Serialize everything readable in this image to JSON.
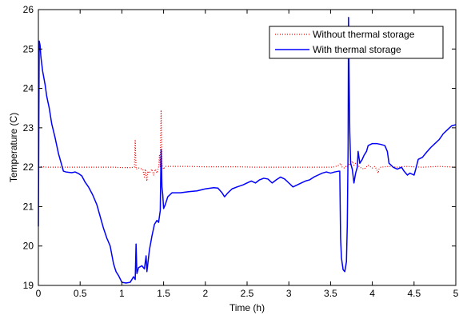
{
  "chart_data": {
    "type": "line",
    "xlabel": "Time (h)",
    "ylabel": "Temperature (C)",
    "xlim": [
      0,
      5
    ],
    "ylim": [
      19,
      26
    ],
    "xticks": [
      "0",
      "0.5",
      "1",
      "1.5",
      "2",
      "2.5",
      "3",
      "3.5",
      "4",
      "4.5",
      "5"
    ],
    "yticks": [
      "19",
      "20",
      "21",
      "22",
      "23",
      "24",
      "25",
      "26"
    ],
    "grid": false,
    "legend_position": "top-right",
    "series": [
      {
        "name": "Without thermal storage",
        "color": "#ff0000",
        "style": "dotted",
        "points": [
          [
            0.0,
            22.02
          ],
          [
            0.05,
            22.01
          ],
          [
            0.1,
            22.0
          ],
          [
            0.2,
            22.0
          ],
          [
            0.3,
            22.0
          ],
          [
            0.4,
            22.0
          ],
          [
            0.5,
            22.0
          ],
          [
            0.6,
            22.0
          ],
          [
            0.7,
            22.0
          ],
          [
            0.8,
            22.0
          ],
          [
            0.9,
            22.0
          ],
          [
            1.0,
            21.99
          ],
          [
            1.1,
            21.99
          ],
          [
            1.15,
            22.0
          ],
          [
            1.16,
            22.7
          ],
          [
            1.17,
            21.95
          ],
          [
            1.2,
            21.98
          ],
          [
            1.25,
            21.95
          ],
          [
            1.27,
            21.75
          ],
          [
            1.28,
            21.95
          ],
          [
            1.3,
            21.65
          ],
          [
            1.31,
            21.9
          ],
          [
            1.33,
            21.85
          ],
          [
            1.36,
            21.95
          ],
          [
            1.38,
            21.8
          ],
          [
            1.4,
            21.95
          ],
          [
            1.42,
            21.85
          ],
          [
            1.44,
            22.0
          ],
          [
            1.45,
            22.3
          ],
          [
            1.46,
            22.0
          ],
          [
            1.47,
            23.45
          ],
          [
            1.48,
            22.05
          ],
          [
            1.5,
            21.95
          ],
          [
            1.52,
            22.02
          ],
          [
            1.6,
            22.02
          ],
          [
            1.8,
            22.02
          ],
          [
            2.0,
            22.01
          ],
          [
            2.2,
            22.01
          ],
          [
            2.4,
            22.01
          ],
          [
            2.6,
            22.0
          ],
          [
            2.8,
            22.0
          ],
          [
            3.0,
            22.0
          ],
          [
            3.2,
            22.0
          ],
          [
            3.4,
            22.0
          ],
          [
            3.5,
            22.0
          ],
          [
            3.55,
            22.01
          ],
          [
            3.6,
            22.05
          ],
          [
            3.62,
            22.1
          ],
          [
            3.64,
            22.0
          ],
          [
            3.66,
            21.98
          ],
          [
            3.68,
            22.02
          ],
          [
            3.7,
            22.0
          ],
          [
            3.72,
            22.1
          ],
          [
            3.74,
            22.05
          ],
          [
            3.76,
            22.15
          ],
          [
            3.78,
            22.05
          ],
          [
            3.8,
            22.1
          ],
          [
            3.85,
            22.0
          ],
          [
            3.9,
            21.95
          ],
          [
            3.95,
            22.05
          ],
          [
            4.0,
            21.98
          ],
          [
            4.03,
            22.02
          ],
          [
            4.05,
            21.95
          ],
          [
            4.07,
            21.85
          ],
          [
            4.08,
            21.95
          ],
          [
            4.1,
            22.0
          ],
          [
            4.2,
            22.02
          ],
          [
            4.3,
            22.0
          ],
          [
            4.4,
            22.02
          ],
          [
            4.5,
            22.01
          ],
          [
            4.6,
            22.0
          ],
          [
            4.7,
            22.01
          ],
          [
            4.8,
            22.02
          ],
          [
            4.9,
            22.01
          ],
          [
            5.0,
            22.0
          ]
        ]
      },
      {
        "name": "With thermal storage",
        "color": "#0000ff",
        "style": "solid",
        "points": [
          [
            0.0,
            20.5
          ],
          [
            0.01,
            25.2
          ],
          [
            0.02,
            25.1
          ],
          [
            0.03,
            24.8
          ],
          [
            0.05,
            24.45
          ],
          [
            0.08,
            24.1
          ],
          [
            0.1,
            23.8
          ],
          [
            0.13,
            23.5
          ],
          [
            0.16,
            23.1
          ],
          [
            0.2,
            22.75
          ],
          [
            0.24,
            22.35
          ],
          [
            0.28,
            22.05
          ],
          [
            0.3,
            21.9
          ],
          [
            0.33,
            21.88
          ],
          [
            0.36,
            21.87
          ],
          [
            0.4,
            21.86
          ],
          [
            0.44,
            21.88
          ],
          [
            0.48,
            21.84
          ],
          [
            0.52,
            21.78
          ],
          [
            0.56,
            21.62
          ],
          [
            0.6,
            21.5
          ],
          [
            0.65,
            21.3
          ],
          [
            0.7,
            21.05
          ],
          [
            0.74,
            20.75
          ],
          [
            0.78,
            20.45
          ],
          [
            0.82,
            20.2
          ],
          [
            0.86,
            20.0
          ],
          [
            0.9,
            19.55
          ],
          [
            0.93,
            19.35
          ],
          [
            0.96,
            19.25
          ],
          [
            1.0,
            19.08
          ],
          [
            1.05,
            19.06
          ],
          [
            1.1,
            19.08
          ],
          [
            1.14,
            19.22
          ],
          [
            1.16,
            19.15
          ],
          [
            1.17,
            20.05
          ],
          [
            1.18,
            19.3
          ],
          [
            1.2,
            19.45
          ],
          [
            1.24,
            19.5
          ],
          [
            1.27,
            19.42
          ],
          [
            1.29,
            19.75
          ],
          [
            1.3,
            19.35
          ],
          [
            1.33,
            19.9
          ],
          [
            1.36,
            20.25
          ],
          [
            1.39,
            20.55
          ],
          [
            1.42,
            20.65
          ],
          [
            1.44,
            20.6
          ],
          [
            1.46,
            20.9
          ],
          [
            1.47,
            22.45
          ],
          [
            1.48,
            21.5
          ],
          [
            1.49,
            21.3
          ],
          [
            1.5,
            20.95
          ],
          [
            1.52,
            21.05
          ],
          [
            1.55,
            21.25
          ],
          [
            1.6,
            21.35
          ],
          [
            1.7,
            21.35
          ],
          [
            1.8,
            21.38
          ],
          [
            1.9,
            21.4
          ],
          [
            2.0,
            21.45
          ],
          [
            2.1,
            21.48
          ],
          [
            2.15,
            21.47
          ],
          [
            2.2,
            21.35
          ],
          [
            2.23,
            21.25
          ],
          [
            2.27,
            21.35
          ],
          [
            2.32,
            21.45
          ],
          [
            2.38,
            21.5
          ],
          [
            2.45,
            21.55
          ],
          [
            2.5,
            21.6
          ],
          [
            2.55,
            21.65
          ],
          [
            2.6,
            21.6
          ],
          [
            2.65,
            21.68
          ],
          [
            2.7,
            21.72
          ],
          [
            2.75,
            21.7
          ],
          [
            2.8,
            21.6
          ],
          [
            2.85,
            21.68
          ],
          [
            2.9,
            21.75
          ],
          [
            2.95,
            21.7
          ],
          [
            3.0,
            21.6
          ],
          [
            3.05,
            21.5
          ],
          [
            3.1,
            21.55
          ],
          [
            3.15,
            21.6
          ],
          [
            3.2,
            21.65
          ],
          [
            3.25,
            21.68
          ],
          [
            3.3,
            21.75
          ],
          [
            3.35,
            21.8
          ],
          [
            3.4,
            21.85
          ],
          [
            3.45,
            21.88
          ],
          [
            3.5,
            21.85
          ],
          [
            3.55,
            21.88
          ],
          [
            3.6,
            21.9
          ],
          [
            3.61,
            21.9
          ],
          [
            3.62,
            20.2
          ],
          [
            3.63,
            19.7
          ],
          [
            3.65,
            19.4
          ],
          [
            3.67,
            19.35
          ],
          [
            3.69,
            19.6
          ],
          [
            3.7,
            20.5
          ],
          [
            3.71,
            22.5
          ],
          [
            3.715,
            25.8
          ],
          [
            3.72,
            24.6
          ],
          [
            3.73,
            22.9
          ],
          [
            3.74,
            22.1
          ],
          [
            3.76,
            21.95
          ],
          [
            3.78,
            21.6
          ],
          [
            3.8,
            21.85
          ],
          [
            3.82,
            22.0
          ],
          [
            3.83,
            22.4
          ],
          [
            3.85,
            22.1
          ],
          [
            3.88,
            22.2
          ],
          [
            3.9,
            22.3
          ],
          [
            3.93,
            22.4
          ],
          [
            3.95,
            22.55
          ],
          [
            4.0,
            22.6
          ],
          [
            4.05,
            22.6
          ],
          [
            4.1,
            22.58
          ],
          [
            4.15,
            22.55
          ],
          [
            4.18,
            22.4
          ],
          [
            4.2,
            22.1
          ],
          [
            4.25,
            22.0
          ],
          [
            4.3,
            21.95
          ],
          [
            4.35,
            22.0
          ],
          [
            4.38,
            21.9
          ],
          [
            4.4,
            21.85
          ],
          [
            4.42,
            21.8
          ],
          [
            4.45,
            21.85
          ],
          [
            4.5,
            21.8
          ],
          [
            4.52,
            21.95
          ],
          [
            4.55,
            22.2
          ],
          [
            4.6,
            22.25
          ],
          [
            4.65,
            22.38
          ],
          [
            4.7,
            22.5
          ],
          [
            4.75,
            22.6
          ],
          [
            4.8,
            22.7
          ],
          [
            4.85,
            22.85
          ],
          [
            4.9,
            22.95
          ],
          [
            4.95,
            23.05
          ],
          [
            5.0,
            23.08
          ]
        ]
      }
    ]
  }
}
